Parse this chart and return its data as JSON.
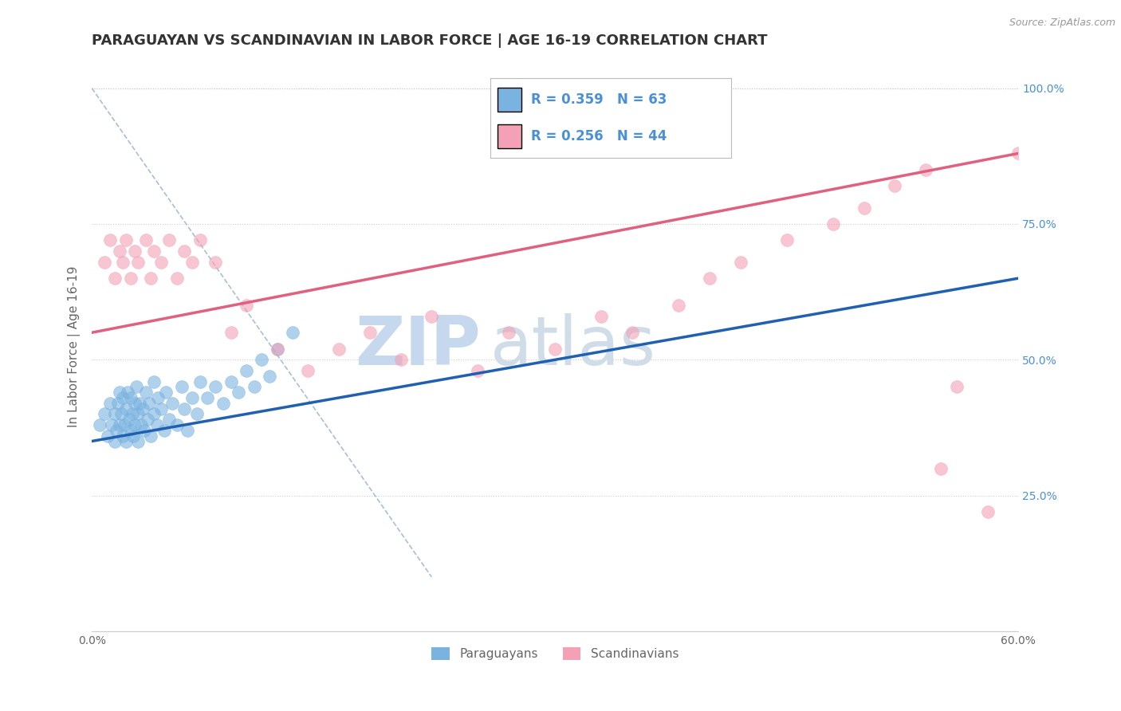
{
  "title": "PARAGUAYAN VS SCANDINAVIAN IN LABOR FORCE | AGE 16-19 CORRELATION CHART",
  "source": "Source: ZipAtlas.com",
  "ylabel": "In Labor Force | Age 16-19",
  "xlim": [
    0.0,
    0.6
  ],
  "ylim": [
    0.0,
    1.05
  ],
  "xticks": [
    0.0,
    0.6
  ],
  "xticklabels": [
    "0.0%",
    "60.0%"
  ],
  "yticks_right": [
    0.25,
    0.5,
    0.75,
    1.0
  ],
  "ytick_labels_right": [
    "25.0%",
    "50.0%",
    "75.0%",
    "100.0%"
  ],
  "blue_color": "#7ab3e0",
  "pink_color": "#f4a0b5",
  "blue_line_color": "#2060b0",
  "pink_line_color": "#e06080",
  "watermark_zip": "ZIP",
  "watermark_atlas": "atlas",
  "legend_r_blue": "R = 0.359",
  "legend_n_blue": "N = 63",
  "legend_r_pink": "R = 0.256",
  "legend_n_pink": "N = 44",
  "paraguayans_label": "Paraguayans",
  "scandinavians_label": "Scandinavians",
  "blue_points_x": [
    0.005,
    0.008,
    0.01,
    0.012,
    0.013,
    0.015,
    0.015,
    0.016,
    0.017,
    0.018,
    0.018,
    0.019,
    0.02,
    0.02,
    0.021,
    0.022,
    0.022,
    0.023,
    0.024,
    0.025,
    0.025,
    0.026,
    0.027,
    0.028,
    0.028,
    0.029,
    0.03,
    0.03,
    0.031,
    0.032,
    0.033,
    0.034,
    0.035,
    0.036,
    0.037,
    0.038,
    0.04,
    0.04,
    0.042,
    0.043,
    0.045,
    0.047,
    0.048,
    0.05,
    0.052,
    0.055,
    0.058,
    0.06,
    0.062,
    0.065,
    0.068,
    0.07,
    0.075,
    0.08,
    0.085,
    0.09,
    0.095,
    0.1,
    0.105,
    0.11,
    0.115,
    0.12,
    0.13
  ],
  "blue_points_y": [
    0.38,
    0.4,
    0.36,
    0.42,
    0.38,
    0.35,
    0.4,
    0.37,
    0.42,
    0.38,
    0.44,
    0.4,
    0.36,
    0.43,
    0.38,
    0.41,
    0.35,
    0.44,
    0.39,
    0.37,
    0.43,
    0.4,
    0.36,
    0.42,
    0.38,
    0.45,
    0.4,
    0.35,
    0.42,
    0.38,
    0.41,
    0.37,
    0.44,
    0.39,
    0.42,
    0.36,
    0.4,
    0.46,
    0.38,
    0.43,
    0.41,
    0.37,
    0.44,
    0.39,
    0.42,
    0.38,
    0.45,
    0.41,
    0.37,
    0.43,
    0.4,
    0.46,
    0.43,
    0.45,
    0.42,
    0.46,
    0.44,
    0.48,
    0.45,
    0.5,
    0.47,
    0.52,
    0.55
  ],
  "pink_points_x": [
    0.008,
    0.012,
    0.015,
    0.018,
    0.02,
    0.022,
    0.025,
    0.028,
    0.03,
    0.035,
    0.038,
    0.04,
    0.045,
    0.05,
    0.055,
    0.06,
    0.065,
    0.07,
    0.08,
    0.09,
    0.1,
    0.12,
    0.14,
    0.16,
    0.18,
    0.2,
    0.22,
    0.25,
    0.27,
    0.3,
    0.33,
    0.35,
    0.38,
    0.4,
    0.42,
    0.45,
    0.48,
    0.5,
    0.52,
    0.54,
    0.55,
    0.56,
    0.58,
    0.6
  ],
  "pink_points_y": [
    0.68,
    0.72,
    0.65,
    0.7,
    0.68,
    0.72,
    0.65,
    0.7,
    0.68,
    0.72,
    0.65,
    0.7,
    0.68,
    0.72,
    0.65,
    0.7,
    0.68,
    0.72,
    0.68,
    0.55,
    0.6,
    0.52,
    0.48,
    0.52,
    0.55,
    0.5,
    0.58,
    0.48,
    0.55,
    0.52,
    0.58,
    0.55,
    0.6,
    0.65,
    0.68,
    0.72,
    0.75,
    0.78,
    0.82,
    0.85,
    0.3,
    0.45,
    0.22,
    0.88
  ],
  "blue_trend": [
    0.0,
    0.6,
    0.35,
    0.65
  ],
  "pink_trend": [
    0.0,
    0.6,
    0.55,
    0.88
  ],
  "ref_line": [
    0.0,
    0.22,
    1.0,
    0.1
  ],
  "background_color": "#ffffff",
  "title_color": "#333333",
  "axis_label_color": "#666666",
  "tick_label_color": "#666666",
  "right_tick_color": "#4a90d9",
  "watermark_color_zip": "#c5d8ee",
  "watermark_color_atlas": "#d0dde8",
  "title_fontsize": 13,
  "axis_label_fontsize": 11,
  "tick_fontsize": 10,
  "legend_text_color": "#4a90d9"
}
